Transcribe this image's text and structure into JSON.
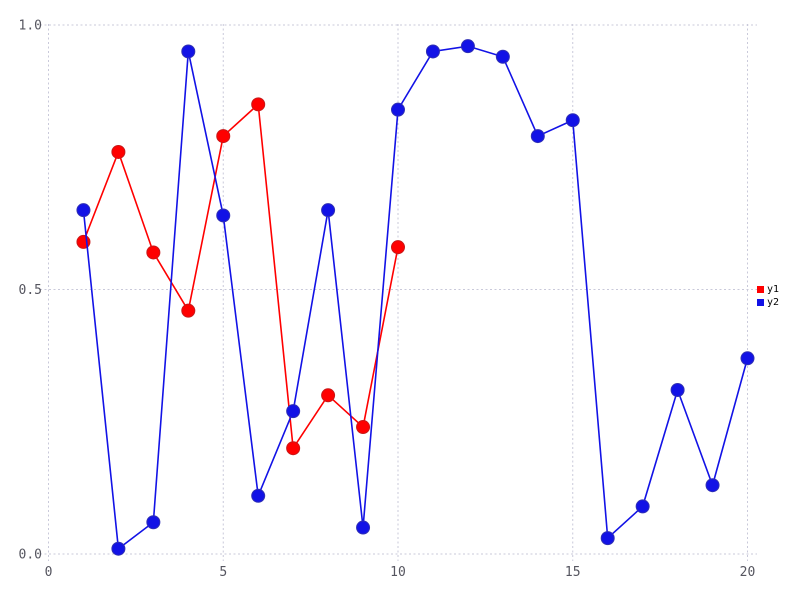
{
  "chart_data": {
    "type": "line",
    "title": "",
    "xlabel": "",
    "ylabel": "",
    "xlim": [
      0,
      20
    ],
    "ylim": [
      0.0,
      1.0
    ],
    "grid": "dotted",
    "legend_position": "right-outside",
    "x_ticks": [
      0,
      5,
      10,
      15,
      20
    ],
    "x_tick_labels": [
      "0",
      "5",
      "10",
      "15",
      "20"
    ],
    "y_ticks": [
      0.0,
      0.5,
      1.0
    ],
    "y_tick_labels": [
      "0.0",
      "0.5",
      "1.0"
    ],
    "series": [
      {
        "name": "y1",
        "color": "#ff0000",
        "marker_edge": "#c81818",
        "marker": "circle",
        "x": [
          1,
          2,
          3,
          4,
          5,
          6,
          7,
          8,
          9,
          10
        ],
        "y": [
          0.59,
          0.76,
          0.57,
          0.46,
          0.79,
          0.85,
          0.2,
          0.3,
          0.24,
          0.58
        ]
      },
      {
        "name": "y2",
        "color": "#1212e6",
        "marker_edge": "#3030b4",
        "marker": "circle",
        "x": [
          1,
          2,
          3,
          4,
          5,
          6,
          7,
          8,
          9,
          10,
          11,
          12,
          13,
          14,
          15,
          16,
          17,
          18,
          19,
          20
        ],
        "y": [
          0.65,
          0.01,
          0.06,
          0.95,
          0.64,
          0.11,
          0.27,
          0.65,
          0.05,
          0.84,
          0.95,
          0.96,
          0.94,
          0.79,
          0.82,
          0.03,
          0.09,
          0.31,
          0.13,
          0.37
        ]
      }
    ]
  },
  "legend": {
    "items": [
      {
        "label": "y1",
        "color": "#ff0000"
      },
      {
        "label": "y2",
        "color": "#1212e6"
      }
    ]
  },
  "colors": {
    "background": "#ffffff",
    "gridline": "#c9c9da",
    "tick_label": "#55555f",
    "legend_text": "#000000"
  }
}
